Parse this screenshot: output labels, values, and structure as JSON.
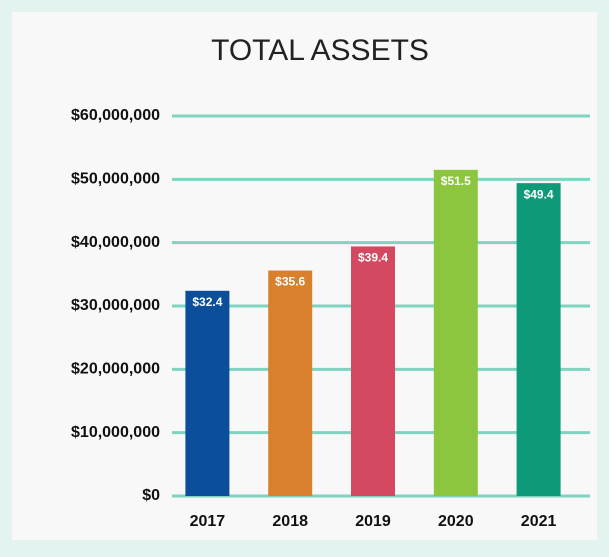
{
  "chart_data": {
    "type": "bar",
    "title": "TOTAL ASSETS",
    "categories": [
      "2017",
      "2018",
      "2019",
      "2020",
      "2021"
    ],
    "values": [
      32400000,
      35600000,
      39400000,
      51500000,
      49400000
    ],
    "value_labels": [
      "$32.4",
      "$35.6",
      "$39.4",
      "$51.5",
      "$49.4"
    ],
    "colors": [
      "#0b4f9a",
      "#d8802b",
      "#d44862",
      "#8cc63f",
      "#0e9a78"
    ],
    "ylim": [
      0,
      60000000
    ],
    "yticks": [
      {
        "value": 0,
        "label": "$0"
      },
      {
        "value": 10000000,
        "label": "$10,000,000"
      },
      {
        "value": 20000000,
        "label": "$20,000,000"
      },
      {
        "value": 30000000,
        "label": "$30,000,000"
      },
      {
        "value": 40000000,
        "label": "$40,000,000"
      },
      {
        "value": 50000000,
        "label": "$50,000,000"
      },
      {
        "value": 60000000,
        "label": "$60,000,000"
      }
    ],
    "grid": true
  }
}
